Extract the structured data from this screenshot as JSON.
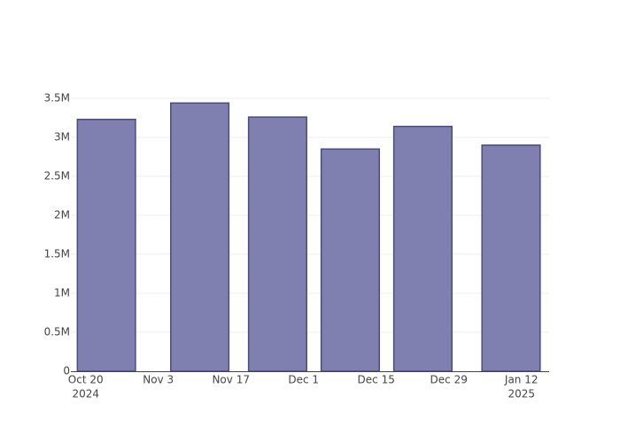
{
  "chart_data": {
    "type": "bar",
    "x": [
      "2024-10-24",
      "2024-11-11",
      "2024-11-26",
      "2024-12-10",
      "2024-12-24",
      "2025-01-10"
    ],
    "values": [
      3230000,
      3440000,
      3260000,
      2850000,
      3140000,
      2900000
    ],
    "color": "#8080b0",
    "edge_color": "#4b4b80",
    "xlim": [
      "2024-10-18",
      "2025-01-17"
    ],
    "xticks": [
      {
        "value": "2024-10-20",
        "label": "Oct 20",
        "year": "2024"
      },
      {
        "value": "2024-11-03",
        "label": "Nov 3"
      },
      {
        "value": "2024-11-17",
        "label": "Nov 17"
      },
      {
        "value": "2024-12-01",
        "label": "Dec 1"
      },
      {
        "value": "2024-12-15",
        "label": "Dec 15"
      },
      {
        "value": "2024-12-29",
        "label": "Dec 29"
      },
      {
        "value": "2025-01-12",
        "label": "Jan 12",
        "year": "2025"
      }
    ],
    "ylim": [
      0,
      3625000
    ],
    "yticks": [
      0,
      {
        "value": 500000,
        "label": "0.5M"
      },
      {
        "value": 1000000,
        "label": "1M"
      },
      {
        "value": 1500000,
        "label": "1.5M"
      },
      {
        "value": 2000000,
        "label": "2M"
      },
      {
        "value": 2500000,
        "label": "2.5M"
      },
      {
        "value": 3000000,
        "label": "3M"
      },
      {
        "value": 3500000,
        "label": "3.5M"
      }
    ],
    "grid": true
  }
}
